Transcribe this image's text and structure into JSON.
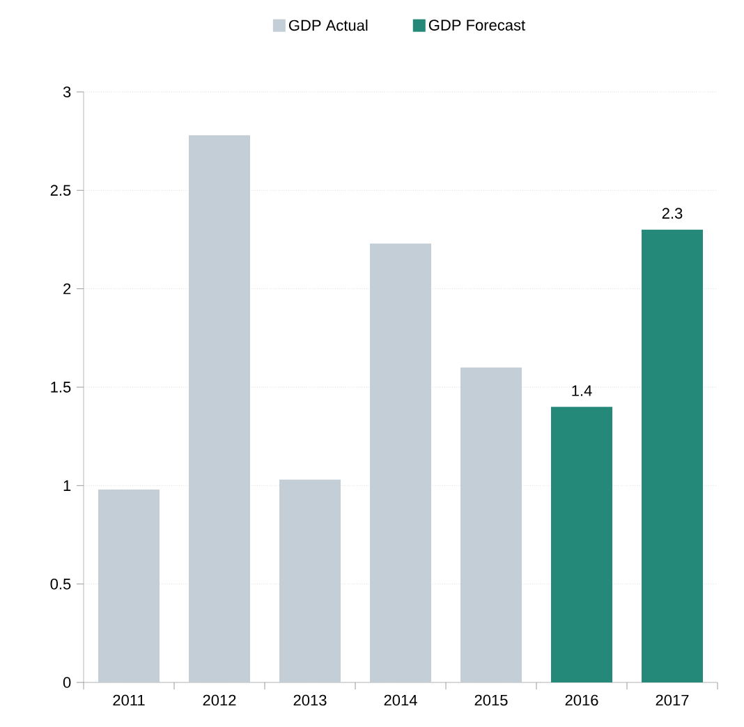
{
  "chart_data": {
    "type": "bar",
    "categories": [
      "2011",
      "2012",
      "2013",
      "2014",
      "2015",
      "2016",
      "2017"
    ],
    "series": [
      {
        "name": "GDP Actual",
        "color": "#c3ced6",
        "values": [
          0.98,
          2.78,
          1.03,
          2.23,
          1.6,
          null,
          null
        ]
      },
      {
        "name": "GDP Forecast",
        "color": "#25897a",
        "values": [
          null,
          null,
          null,
          null,
          null,
          1.4,
          2.3
        ],
        "value_labels": [
          null,
          null,
          null,
          null,
          null,
          "1.4",
          "2.3"
        ]
      }
    ],
    "ylim": [
      0,
      3
    ],
    "yticks": [
      0,
      0.5,
      1,
      1.5,
      2,
      2.5,
      3
    ],
    "grid": "y",
    "legend": "top"
  }
}
